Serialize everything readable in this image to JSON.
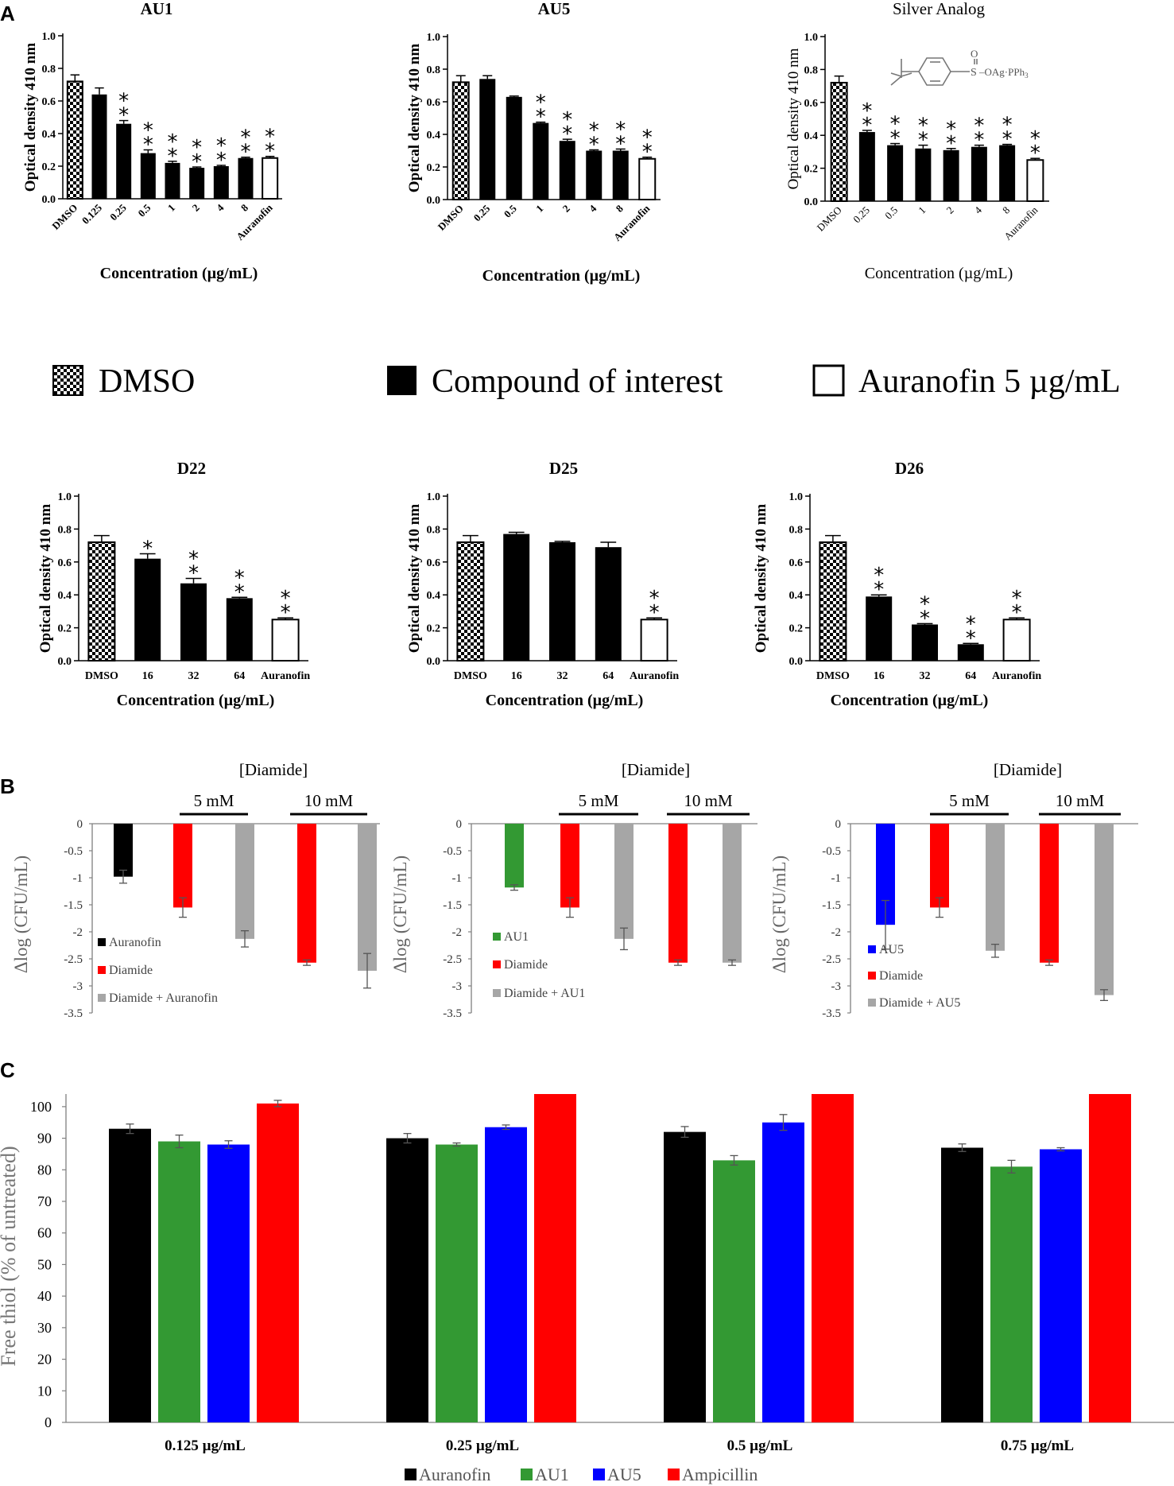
{
  "panel_labels": {
    "a": "A",
    "b": "B",
    "c": "C"
  },
  "legend_a": {
    "dmso": "DMSO",
    "compound": "Compound of interest",
    "auranofin": "Auranofin 5 µg/mL"
  },
  "chem_structure": {
    "sulfinyl": "S",
    "oxo": "O",
    "suffix": "–OAg·PPh",
    "sub": "3"
  },
  "colors": {
    "black": "#000000",
    "red": "#ff0000",
    "green": "#339933",
    "blue": "#0000ff",
    "grey": "#a6a6a6",
    "axis_grey": "#808080"
  },
  "chart_data": [
    {
      "id": "au1",
      "type": "bar",
      "panel": "A",
      "title": "AU1",
      "bold": true,
      "ylabel": "Optical density 410 nm",
      "xlabel": "Concentration (µg/mL)",
      "categories": [
        "DMSO",
        "0.125",
        "0.25",
        "0.5",
        "1",
        "2",
        "4",
        "8",
        "Auranofin"
      ],
      "values": [
        0.72,
        0.64,
        0.46,
        0.28,
        0.22,
        0.19,
        0.2,
        0.25,
        0.25
      ],
      "errors": [
        0.04,
        0.04,
        0.02,
        0.02,
        0.01,
        0.005,
        0.005,
        0.005,
        0.01
      ],
      "styles": [
        "checker",
        "black",
        "black",
        "black",
        "black",
        "black",
        "black",
        "black",
        "white"
      ],
      "significance": [
        "",
        "",
        "**",
        "**",
        "**",
        "**",
        "**",
        "**",
        "**"
      ],
      "yticks": [
        "0.0",
        "0.2",
        "0.4",
        "0.6",
        "0.8",
        "1.0"
      ],
      "ylim": [
        0,
        1.0
      ],
      "rotated_labels": true
    },
    {
      "id": "au5",
      "type": "bar",
      "panel": "A",
      "title": "AU5",
      "bold": true,
      "ylabel": "Optical density 410 nm",
      "xlabel": "Concentration (µg/mL)",
      "categories": [
        "DMSO",
        "0.25",
        "0.5",
        "1",
        "2",
        "4",
        "8",
        "Auranofin"
      ],
      "values": [
        0.72,
        0.74,
        0.63,
        0.47,
        0.36,
        0.3,
        0.3,
        0.25
      ],
      "errors": [
        0.04,
        0.02,
        0.005,
        0.005,
        0.01,
        0.005,
        0.01,
        0.01
      ],
      "styles": [
        "checker",
        "black",
        "black",
        "black",
        "black",
        "black",
        "black",
        "white"
      ],
      "significance": [
        "",
        "",
        "",
        "**",
        "**",
        "**",
        "**",
        "**"
      ],
      "yticks": [
        "0.0",
        "0.2",
        "0.4",
        "0.6",
        "0.8",
        "1.0"
      ],
      "ylim": [
        0,
        1.0
      ],
      "rotated_labels": true
    },
    {
      "id": "silver",
      "type": "bar",
      "panel": "A",
      "title": "Silver Analog",
      "bold": false,
      "ylabel": "Optical density 410 nm",
      "xlabel": "Concentration (µg/mL)",
      "categories": [
        "DMSO",
        "0.25",
        "0.5",
        "1",
        "2",
        "4",
        "8",
        "Auranofin"
      ],
      "values": [
        0.72,
        0.42,
        0.34,
        0.32,
        0.31,
        0.33,
        0.34,
        0.25
      ],
      "errors": [
        0.04,
        0.01,
        0.01,
        0.02,
        0.01,
        0.01,
        0.005,
        0.01
      ],
      "styles": [
        "checker",
        "black",
        "black",
        "black",
        "black",
        "black",
        "black",
        "white"
      ],
      "significance": [
        "",
        "**",
        "**",
        "**",
        "**",
        "**",
        "**",
        "**"
      ],
      "yticks": [
        "0.0",
        "0.2",
        "0.4",
        "0.6",
        "0.8",
        "1.0"
      ],
      "ylim": [
        0,
        1.0
      ],
      "rotated_labels": true
    },
    {
      "id": "d22",
      "type": "bar",
      "panel": "A",
      "title": "D22",
      "bold": true,
      "ylabel": "Optical density 410 nm",
      "xlabel": "Concentration (µg/mL)",
      "categories": [
        "DMSO",
        "16",
        "32",
        "64",
        "Auranofin"
      ],
      "values": [
        0.72,
        0.62,
        0.47,
        0.38,
        0.25
      ],
      "errors": [
        0.04,
        0.03,
        0.03,
        0.005,
        0.01
      ],
      "styles": [
        "checker",
        "black",
        "black",
        "black",
        "white"
      ],
      "significance": [
        "",
        "*",
        "**",
        "**",
        "**"
      ],
      "yticks": [
        "0.0",
        "0.2",
        "0.4",
        "0.6",
        "0.8",
        "1.0"
      ],
      "ylim": [
        0,
        1.0
      ],
      "rotated_labels": false
    },
    {
      "id": "d25",
      "type": "bar",
      "panel": "A",
      "title": "D25",
      "bold": true,
      "ylabel": "Optical density 410 nm",
      "xlabel": "Concentration (µg/mL)",
      "categories": [
        "DMSO",
        "16",
        "32",
        "64",
        "Auranofin"
      ],
      "values": [
        0.72,
        0.77,
        0.72,
        0.69,
        0.25
      ],
      "errors": [
        0.04,
        0.01,
        0.005,
        0.03,
        0.01
      ],
      "styles": [
        "checker",
        "black",
        "black",
        "black",
        "white"
      ],
      "significance": [
        "",
        "",
        "",
        "",
        "**"
      ],
      "yticks": [
        "0.0",
        "0.2",
        "0.4",
        "0.6",
        "0.8",
        "1.0"
      ],
      "ylim": [
        0,
        1.0
      ],
      "rotated_labels": false
    },
    {
      "id": "d26",
      "type": "bar",
      "panel": "A",
      "title": "D26",
      "bold": true,
      "ylabel": "Optical density 410 nm",
      "xlabel": "Concentration (µg/mL)",
      "categories": [
        "DMSO",
        "16",
        "32",
        "64",
        "Auranofin"
      ],
      "values": [
        0.72,
        0.39,
        0.22,
        0.1,
        0.25
      ],
      "errors": [
        0.04,
        0.01,
        0.005,
        0.005,
        0.01
      ],
      "styles": [
        "checker",
        "black",
        "black",
        "black",
        "white"
      ],
      "significance": [
        "",
        "**",
        "**",
        "**",
        "**"
      ],
      "yticks": [
        "0.0",
        "0.2",
        "0.4",
        "0.6",
        "0.8",
        "1.0"
      ],
      "ylim": [
        0,
        1.0
      ],
      "rotated_labels": false
    },
    {
      "id": "b1",
      "type": "bar",
      "panel": "B",
      "title": "[Diamide]",
      "ylabel": "Δlog (CFU/mL)",
      "group_labels": [
        "5 mM",
        "10 mM"
      ],
      "values": [
        -0.98,
        -1.55,
        -2.13,
        -2.57,
        -2.72
      ],
      "errors": [
        0.12,
        0.18,
        0.15,
        0.05,
        0.32
      ],
      "colors": [
        "#000000",
        "#ff0000",
        "#a6a6a6",
        "#ff0000",
        "#a6a6a6"
      ],
      "legend": [
        {
          "label": "Auranofin",
          "color": "#000000"
        },
        {
          "label": "Diamide",
          "color": "#ff0000"
        },
        {
          "label": "Diamide + Auranofin",
          "color": "#a6a6a6"
        }
      ],
      "yticks": [
        "0",
        "-0.5",
        "-1",
        "-1.5",
        "-2",
        "-2.5",
        "-3",
        "-3.5"
      ],
      "ylim": [
        -3.5,
        0
      ]
    },
    {
      "id": "b2",
      "type": "bar",
      "panel": "B",
      "title": "[Diamide]",
      "ylabel": "Δlog (CFU/mL)",
      "group_labels": [
        "5 mM",
        "10 mM"
      ],
      "values": [
        -1.18,
        -1.55,
        -2.13,
        -2.57,
        -2.57
      ],
      "errors": [
        0.05,
        0.18,
        0.2,
        0.05,
        0.05
      ],
      "colors": [
        "#339933",
        "#ff0000",
        "#a6a6a6",
        "#ff0000",
        "#a6a6a6"
      ],
      "legend": [
        {
          "label": "AU1",
          "color": "#339933"
        },
        {
          "label": "Diamide",
          "color": "#ff0000"
        },
        {
          "label": "Diamide + AU1",
          "color": "#a6a6a6"
        }
      ],
      "yticks": [
        "0",
        "-0.5",
        "-1",
        "-1.5",
        "-2",
        "-2.5",
        "-3",
        "-3.5"
      ],
      "ylim": [
        -3.5,
        0
      ]
    },
    {
      "id": "b3",
      "type": "bar",
      "panel": "B",
      "title": "[Diamide]",
      "ylabel": "Δlog (CFU/mL)",
      "group_labels": [
        "5 mM",
        "10 mM"
      ],
      "values": [
        -1.87,
        -1.55,
        -2.35,
        -2.57,
        -3.17
      ],
      "errors": [
        0.45,
        0.18,
        0.12,
        0.05,
        0.1
      ],
      "colors": [
        "#0000ff",
        "#ff0000",
        "#a6a6a6",
        "#ff0000",
        "#a6a6a6"
      ],
      "legend": [
        {
          "label": "AU5",
          "color": "#0000ff"
        },
        {
          "label": "Diamide",
          "color": "#ff0000"
        },
        {
          "label": "Diamide + AU5",
          "color": "#a6a6a6"
        }
      ],
      "yticks": [
        "0",
        "-0.5",
        "-1",
        "-1.5",
        "-2",
        "-2.5",
        "-3",
        "-3.5"
      ],
      "ylim": [
        -3.5,
        0
      ]
    },
    {
      "id": "c",
      "type": "bar",
      "panel": "C",
      "ylabel": "Free thiol (% of untreated)",
      "categories": [
        "0.125 µg/mL",
        "0.25 µg/mL",
        "0.5 µg/mL",
        "0.75 µg/mL"
      ],
      "series": [
        {
          "name": "Auranofin",
          "color": "#000000",
          "values": [
            93,
            90,
            92,
            87
          ],
          "errors": [
            1.5,
            1.5,
            1.7,
            1.2
          ]
        },
        {
          "name": "AU1",
          "color": "#339933",
          "values": [
            89,
            88,
            83,
            81
          ],
          "errors": [
            2,
            0.5,
            1.5,
            2
          ]
        },
        {
          "name": "AU5",
          "color": "#0000ff",
          "values": [
            88,
            93.5,
            95,
            86.5
          ],
          "errors": [
            1.2,
            0.7,
            2.5,
            0.5
          ]
        },
        {
          "name": "Ampicillin",
          "color": "#ff0000",
          "values": [
            101,
            104,
            104,
            104
          ],
          "errors": [
            1,
            0,
            0,
            0
          ]
        }
      ],
      "yticks": [
        "0",
        "10",
        "20",
        "30",
        "40",
        "50",
        "60",
        "70",
        "80",
        "90",
        "100"
      ],
      "ylim": [
        0,
        104
      ]
    }
  ]
}
